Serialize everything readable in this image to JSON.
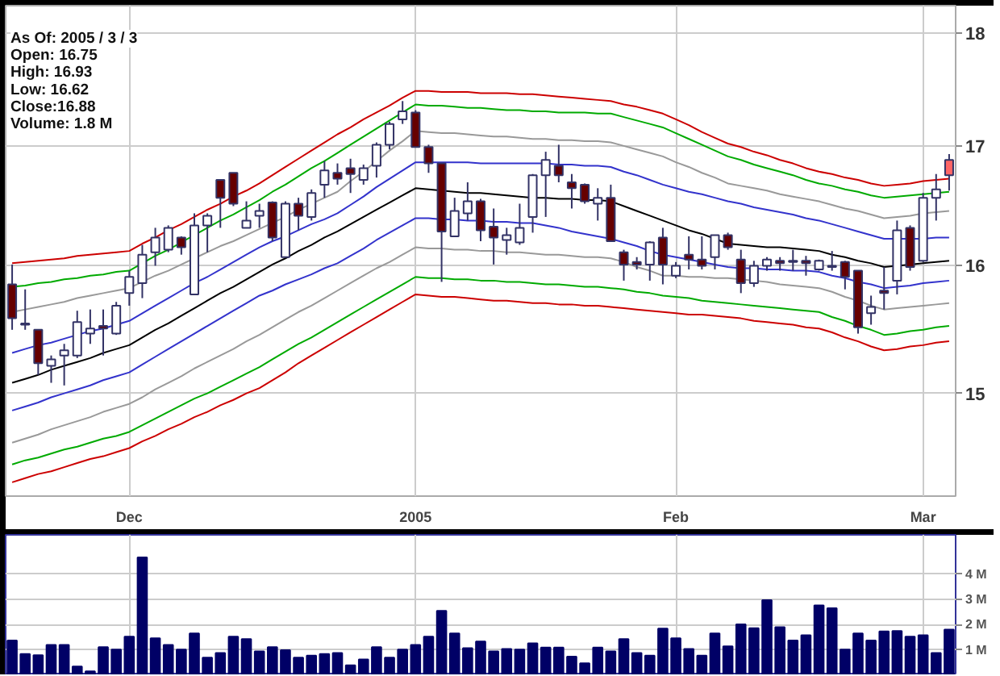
{
  "chart_data": [
    {
      "type": "candlestick",
      "categories": [
        null,
        null,
        null,
        null,
        null,
        null,
        null,
        null,
        null,
        "Dec",
        null,
        null,
        null,
        null,
        null,
        null,
        null,
        null,
        null,
        null,
        null,
        null,
        null,
        null,
        null,
        null,
        null,
        null,
        null,
        null,
        null,
        "2005",
        null,
        null,
        null,
        null,
        null,
        null,
        null,
        null,
        null,
        null,
        null,
        null,
        null,
        null,
        null,
        null,
        null,
        null,
        null,
        "Feb",
        null,
        null,
        null,
        null,
        null,
        null,
        null,
        null,
        null,
        null,
        null,
        null,
        null,
        null,
        null,
        null,
        null,
        null,
        "Mar",
        null,
        null
      ],
      "ohlc": [
        [
          15.85,
          16.01,
          15.49,
          15.58
        ],
        [
          15.53,
          15.81,
          15.49,
          15.54
        ],
        [
          15.49,
          15.49,
          15.14,
          15.23
        ],
        [
          15.21,
          15.29,
          15.08,
          15.26
        ],
        [
          15.29,
          15.38,
          15.06,
          15.33
        ],
        [
          15.29,
          15.64,
          15.27,
          15.55
        ],
        [
          15.46,
          15.65,
          15.38,
          15.5
        ],
        [
          15.52,
          15.65,
          15.29,
          15.5
        ],
        [
          15.46,
          15.71,
          15.45,
          15.68
        ],
        [
          15.78,
          15.96,
          15.68,
          15.91
        ],
        [
          15.86,
          16.17,
          15.74,
          16.09
        ],
        [
          16.11,
          16.31,
          16.0,
          16.23
        ],
        [
          16.13,
          16.33,
          16.11,
          16.31
        ],
        [
          16.23,
          16.24,
          16.09,
          16.15
        ],
        [
          15.77,
          16.43,
          15.77,
          16.33
        ],
        [
          16.33,
          16.43,
          16.11,
          16.41
        ],
        [
          16.71,
          16.71,
          16.31,
          16.56
        ],
        [
          16.77,
          16.77,
          16.49,
          16.51
        ],
        [
          16.31,
          16.53,
          16.31,
          16.37
        ],
        [
          16.41,
          16.51,
          16.31,
          16.45
        ],
        [
          16.52,
          16.53,
          16.2,
          16.23
        ],
        [
          16.07,
          16.53,
          16.07,
          16.51
        ],
        [
          16.51,
          16.56,
          16.29,
          16.41
        ],
        [
          16.4,
          16.63,
          16.37,
          16.6
        ],
        [
          16.67,
          16.87,
          16.56,
          16.79
        ],
        [
          16.77,
          16.85,
          16.67,
          16.72
        ],
        [
          16.81,
          16.89,
          16.6,
          16.76
        ],
        [
          16.71,
          16.84,
          16.67,
          16.81
        ],
        [
          16.83,
          17.03,
          16.73,
          17.01
        ],
        [
          17.01,
          17.21,
          16.97,
          17.19
        ],
        [
          17.23,
          17.39,
          17.19,
          17.3
        ],
        [
          17.29,
          17.31,
          16.99,
          16.99
        ],
        [
          16.99,
          17.01,
          16.77,
          16.85
        ],
        [
          16.85,
          16.85,
          15.87,
          16.28
        ],
        [
          16.24,
          16.56,
          16.24,
          16.45
        ],
        [
          16.43,
          16.69,
          16.37,
          16.53
        ],
        [
          16.53,
          16.55,
          16.2,
          16.29
        ],
        [
          16.32,
          16.47,
          16.01,
          16.23
        ],
        [
          16.21,
          16.31,
          16.09,
          16.25
        ],
        [
          16.19,
          16.51,
          16.17,
          16.31
        ],
        [
          16.4,
          16.76,
          16.27,
          16.75
        ],
        [
          16.75,
          16.95,
          16.4,
          16.88
        ],
        [
          16.83,
          17.01,
          16.69,
          16.75
        ],
        [
          16.69,
          16.76,
          16.47,
          16.64
        ],
        [
          16.67,
          16.68,
          16.51,
          16.53
        ],
        [
          16.51,
          16.64,
          16.37,
          16.56
        ],
        [
          16.56,
          16.67,
          16.2,
          16.2
        ],
        [
          16.11,
          16.13,
          15.88,
          16.01
        ],
        [
          16.03,
          16.07,
          15.97,
          16.01
        ],
        [
          16.01,
          16.2,
          15.88,
          16.19
        ],
        [
          16.23,
          16.31,
          15.85,
          16.01
        ],
        [
          15.92,
          16.03,
          15.9,
          16.0
        ],
        [
          16.09,
          16.24,
          15.97,
          16.05
        ],
        [
          16.05,
          16.24,
          15.97,
          16.0
        ],
        [
          16.07,
          16.25,
          15.97,
          16.25
        ],
        [
          16.25,
          16.27,
          16.13,
          16.15
        ],
        [
          16.05,
          16.13,
          15.78,
          15.86
        ],
        [
          15.86,
          16.04,
          15.83,
          16.0
        ],
        [
          16.0,
          16.07,
          15.96,
          16.05
        ],
        [
          16.04,
          16.07,
          15.96,
          16.02
        ],
        [
          16.03,
          16.13,
          15.96,
          16.04
        ],
        [
          16.04,
          16.08,
          15.92,
          16.02
        ],
        [
          15.97,
          16.05,
          15.96,
          16.04
        ],
        [
          15.99,
          16.12,
          15.96,
          16.0
        ],
        [
          16.03,
          16.04,
          15.81,
          15.91
        ],
        [
          15.96,
          15.96,
          15.46,
          15.51
        ],
        [
          15.62,
          15.76,
          15.53,
          15.67
        ],
        [
          15.8,
          15.99,
          15.65,
          15.78
        ],
        [
          15.88,
          16.37,
          15.77,
          16.29
        ],
        [
          16.31,
          16.33,
          15.96,
          15.99
        ],
        [
          16.04,
          16.6,
          16.03,
          16.56
        ],
        [
          16.56,
          16.76,
          16.37,
          16.63
        ],
        [
          16.75,
          16.93,
          16.62,
          16.88
        ]
      ],
      "colors": [
        "#660000",
        "#ffffff",
        "#660000",
        "#ffffff",
        "#ffffff",
        "#ffffff",
        "#ffffff",
        "#660000",
        "#ffffff",
        "#ffffff",
        "#ffffff",
        "#ffffff",
        "#ffffff",
        "#660000",
        "#ffffff",
        "#ffffff",
        "#660000",
        "#660000",
        "#ffffff",
        "#ffffff",
        "#660000",
        "#ffffff",
        "#660000",
        "#ffffff",
        "#ffffff",
        "#660000",
        "#660000",
        "#ffffff",
        "#ffffff",
        "#ffffff",
        "#ffffff",
        "#660000",
        "#660000",
        "#660000",
        "#ffffff",
        "#ffffff",
        "#660000",
        "#660000",
        "#ffffff",
        "#ffffff",
        "#ffffff",
        "#ffffff",
        "#660000",
        "#660000",
        "#660000",
        "#ffffff",
        "#660000",
        "#660000",
        "#660000",
        "#ffffff",
        "#660000",
        "#ffffff",
        "#660000",
        "#660000",
        "#ffffff",
        "#660000",
        "#660000",
        "#ffffff",
        "#ffffff",
        "#660000",
        "#ffffff",
        "#660000",
        "#ffffff",
        "#ffffff",
        "#660000",
        "#660000",
        "#ffffff",
        "#660000",
        "#ffffff",
        "#660000",
        "#ffffff",
        "#ffffff",
        "#ff6666"
      ],
      "color": "#333366",
      "series": [
        {
          "type": "line",
          "color": "#cc0000",
          "values": [
            16.02,
            16.03,
            16.04,
            16.05,
            16.06,
            16.08,
            16.09,
            16.1,
            16.11,
            16.12,
            16.18,
            16.23,
            16.29,
            16.34,
            16.4,
            16.46,
            16.51,
            16.57,
            16.62,
            16.68,
            16.75,
            16.82,
            16.89,
            16.96,
            17.03,
            17.1,
            17.16,
            17.23,
            17.29,
            17.35,
            17.42,
            17.48,
            17.48,
            17.47,
            17.47,
            17.47,
            17.46,
            17.46,
            17.46,
            17.45,
            17.45,
            17.44,
            17.43,
            17.42,
            17.41,
            17.4,
            17.39,
            17.36,
            17.34,
            17.31,
            17.28,
            17.23,
            17.18,
            17.12,
            17.07,
            17.02,
            16.99,
            16.95,
            16.92,
            16.88,
            16.85,
            16.81,
            16.78,
            16.76,
            16.73,
            16.71,
            16.68,
            16.66,
            16.67,
            16.68,
            16.7,
            16.71,
            16.72
          ]
        },
        {
          "type": "line",
          "color": "#00aa00",
          "values": [
            15.83,
            15.84,
            15.86,
            15.87,
            15.89,
            15.9,
            15.92,
            15.93,
            15.95,
            15.96,
            16.02,
            16.08,
            16.13,
            16.19,
            16.25,
            16.31,
            16.37,
            16.42,
            16.48,
            16.54,
            16.61,
            16.67,
            16.74,
            16.81,
            16.87,
            16.94,
            17.01,
            17.08,
            17.15,
            17.22,
            17.29,
            17.36,
            17.35,
            17.35,
            17.34,
            17.33,
            17.33,
            17.32,
            17.31,
            17.31,
            17.3,
            17.3,
            17.29,
            17.29,
            17.29,
            17.28,
            17.28,
            17.25,
            17.22,
            17.19,
            17.16,
            17.11,
            17.06,
            17.01,
            16.96,
            16.91,
            16.88,
            16.84,
            16.81,
            16.78,
            16.75,
            16.71,
            16.68,
            16.66,
            16.63,
            16.61,
            16.58,
            16.56,
            16.57,
            16.58,
            16.59,
            16.6,
            16.61
          ]
        },
        {
          "type": "line",
          "color": "#999999",
          "values": [
            15.63,
            15.65,
            15.67,
            15.69,
            15.71,
            15.74,
            15.76,
            15.78,
            15.8,
            15.82,
            15.87,
            15.92,
            15.96,
            16.01,
            16.06,
            16.11,
            16.16,
            16.2,
            16.25,
            16.3,
            16.35,
            16.4,
            16.46,
            16.51,
            16.56,
            16.61,
            16.7,
            16.78,
            16.87,
            16.96,
            17.04,
            17.13,
            17.12,
            17.11,
            17.11,
            17.1,
            17.09,
            17.08,
            17.08,
            17.07,
            17.06,
            17.06,
            17.05,
            17.05,
            17.04,
            17.04,
            17.03,
            17.0,
            16.97,
            16.94,
            16.91,
            16.86,
            16.82,
            16.77,
            16.73,
            16.68,
            16.66,
            16.64,
            16.62,
            16.59,
            16.57,
            16.55,
            16.53,
            16.5,
            16.47,
            16.45,
            16.42,
            16.39,
            16.4,
            16.41,
            16.43,
            16.44,
            16.45
          ]
        },
        {
          "type": "line",
          "color": "#3333cc",
          "values": [
            15.31,
            15.34,
            15.37,
            15.39,
            15.42,
            15.45,
            15.48,
            15.5,
            15.53,
            15.56,
            15.62,
            15.68,
            15.74,
            15.8,
            15.86,
            15.91,
            15.97,
            16.03,
            16.09,
            16.15,
            16.2,
            16.24,
            16.29,
            16.34,
            16.38,
            16.43,
            16.5,
            16.57,
            16.65,
            16.72,
            16.79,
            16.86,
            16.86,
            16.86,
            16.86,
            16.86,
            16.85,
            16.85,
            16.85,
            16.85,
            16.85,
            16.85,
            16.84,
            16.84,
            16.83,
            16.83,
            16.82,
            16.78,
            16.75,
            16.71,
            16.67,
            16.64,
            16.61,
            16.59,
            16.56,
            16.53,
            16.51,
            16.48,
            16.46,
            16.44,
            16.42,
            16.39,
            16.37,
            16.34,
            16.31,
            16.28,
            16.25,
            16.22,
            16.22,
            16.22,
            16.22,
            16.23,
            16.23
          ]
        },
        {
          "type": "line",
          "color": "#000000",
          "values": [
            15.08,
            15.11,
            15.14,
            15.18,
            15.21,
            15.24,
            15.27,
            15.31,
            15.34,
            15.37,
            15.43,
            15.49,
            15.54,
            15.6,
            15.66,
            15.72,
            15.78,
            15.83,
            15.89,
            15.95,
            16.01,
            16.06,
            16.12,
            16.17,
            16.23,
            16.28,
            16.34,
            16.4,
            16.46,
            16.52,
            16.58,
            16.64,
            16.63,
            16.62,
            16.61,
            16.6,
            16.6,
            16.59,
            16.58,
            16.57,
            16.56,
            16.56,
            16.55,
            16.55,
            16.54,
            16.54,
            16.53,
            16.49,
            16.45,
            16.41,
            16.37,
            16.33,
            16.29,
            16.26,
            16.22,
            16.18,
            16.17,
            16.16,
            16.15,
            16.15,
            16.14,
            16.13,
            16.12,
            16.09,
            16.07,
            16.04,
            16.02,
            15.99,
            16.0,
            16.01,
            16.02,
            16.03,
            16.04
          ]
        },
        {
          "type": "line",
          "color": "#3333cc",
          "values": [
            14.87,
            14.9,
            14.93,
            14.97,
            15.0,
            15.03,
            15.06,
            15.1,
            15.13,
            15.16,
            15.22,
            15.28,
            15.34,
            15.4,
            15.46,
            15.52,
            15.58,
            15.64,
            15.7,
            15.76,
            15.8,
            15.85,
            15.89,
            15.93,
            15.98,
            16.02,
            16.08,
            16.14,
            16.21,
            16.27,
            16.33,
            16.39,
            16.39,
            16.38,
            16.38,
            16.37,
            16.37,
            16.36,
            16.36,
            16.35,
            16.35,
            16.33,
            16.31,
            16.28,
            16.26,
            16.24,
            16.22,
            16.19,
            16.16,
            16.12,
            16.09,
            16.07,
            16.05,
            16.03,
            16.01,
            15.99,
            15.98,
            15.98,
            15.97,
            15.97,
            15.96,
            15.96,
            15.95,
            15.92,
            15.9,
            15.87,
            15.85,
            15.82,
            15.83,
            15.84,
            15.86,
            15.87,
            15.88
          ]
        },
        {
          "type": "line",
          "color": "#999999",
          "values": [
            14.63,
            14.66,
            14.69,
            14.73,
            14.76,
            14.79,
            14.82,
            14.86,
            14.89,
            14.92,
            14.97,
            15.03,
            15.08,
            15.13,
            15.19,
            15.24,
            15.29,
            15.34,
            15.4,
            15.45,
            15.51,
            15.57,
            15.63,
            15.68,
            15.74,
            15.8,
            15.86,
            15.92,
            15.98,
            16.03,
            16.09,
            16.15,
            16.14,
            16.14,
            16.13,
            16.13,
            16.12,
            16.12,
            16.11,
            16.11,
            16.1,
            16.09,
            16.09,
            16.08,
            16.07,
            16.07,
            16.06,
            16.03,
            15.99,
            15.96,
            15.92,
            15.92,
            15.91,
            15.91,
            15.9,
            15.9,
            15.89,
            15.88,
            15.87,
            15.85,
            15.84,
            15.83,
            15.82,
            15.79,
            15.75,
            15.72,
            15.68,
            15.65,
            15.66,
            15.67,
            15.68,
            15.69,
            15.7
          ]
        },
        {
          "type": "line",
          "color": "#00aa00",
          "values": [
            14.47,
            14.5,
            14.52,
            14.55,
            14.58,
            14.6,
            14.63,
            14.66,
            14.68,
            14.71,
            14.76,
            14.81,
            14.86,
            14.91,
            14.96,
            15.0,
            15.05,
            15.1,
            15.15,
            15.2,
            15.26,
            15.32,
            15.38,
            15.43,
            15.49,
            15.55,
            15.61,
            15.67,
            15.73,
            15.79,
            15.85,
            15.91,
            15.9,
            15.9,
            15.89,
            15.89,
            15.88,
            15.88,
            15.87,
            15.87,
            15.86,
            15.85,
            15.85,
            15.84,
            15.83,
            15.83,
            15.82,
            15.81,
            15.79,
            15.78,
            15.76,
            15.75,
            15.74,
            15.72,
            15.71,
            15.7,
            15.69,
            15.68,
            15.67,
            15.66,
            15.65,
            15.64,
            15.63,
            15.59,
            15.56,
            15.52,
            15.49,
            15.45,
            15.46,
            15.48,
            15.49,
            15.51,
            15.52
          ]
        },
        {
          "type": "line",
          "color": "#cc0000",
          "values": [
            14.34,
            14.37,
            14.4,
            14.42,
            14.45,
            14.48,
            14.51,
            14.53,
            14.56,
            14.59,
            14.64,
            14.68,
            14.73,
            14.77,
            14.82,
            14.86,
            14.91,
            14.95,
            15.0,
            15.04,
            15.1,
            15.16,
            15.23,
            15.29,
            15.35,
            15.41,
            15.47,
            15.53,
            15.59,
            15.65,
            15.71,
            15.77,
            15.76,
            15.75,
            15.75,
            15.74,
            15.73,
            15.72,
            15.72,
            15.71,
            15.7,
            15.7,
            15.69,
            15.69,
            15.68,
            15.68,
            15.67,
            15.66,
            15.65,
            15.64,
            15.63,
            15.62,
            15.61,
            15.61,
            15.6,
            15.59,
            15.58,
            15.56,
            15.55,
            15.54,
            15.53,
            15.51,
            15.5,
            15.47,
            15.43,
            15.4,
            15.36,
            15.33,
            15.34,
            15.36,
            15.37,
            15.39,
            15.4
          ]
        }
      ],
      "annotations": [
        "As Of: 2005 / 3 / 3",
        "Open: 16.75",
        "High: 16.93",
        "Low: 16.62",
        "Close:16.88",
        "Volume: 1.8 M"
      ],
      "log": "y",
      "ylim": [
        14.24,
        18.25
      ],
      "yticks": [
        15,
        16,
        17,
        18
      ],
      "grid": true
    },
    {
      "type": "bar",
      "categories": [
        null,
        null,
        null,
        null,
        null,
        null,
        null,
        null,
        null,
        null,
        null,
        null,
        null,
        null,
        null,
        null,
        null,
        null,
        null,
        null,
        null,
        null,
        null,
        null,
        null,
        null,
        null,
        null,
        null,
        null,
        null,
        null,
        null,
        null,
        null,
        null,
        null,
        null,
        null,
        null,
        null,
        null,
        null,
        null,
        null,
        null,
        null,
        null,
        null,
        null,
        null,
        null,
        null,
        null,
        null,
        null,
        null,
        null,
        null,
        null,
        null,
        null,
        null,
        null,
        null,
        null,
        null,
        null,
        null,
        null,
        null,
        null,
        null
      ],
      "values": [
        1.37,
        0.84,
        0.79,
        1.2,
        1.2,
        0.34,
        0.15,
        1.11,
        1.01,
        1.52,
        4.66,
        1.46,
        1.2,
        1.01,
        1.65,
        0.69,
        0.88,
        1.52,
        1.43,
        0.94,
        1.11,
        0.99,
        0.69,
        0.77,
        0.84,
        0.88,
        0.39,
        0.62,
        1.11,
        0.69,
        1.01,
        1.2,
        1.52,
        2.54,
        1.65,
        1.07,
        1.33,
        0.94,
        1.04,
        1.01,
        1.26,
        1.09,
        1.09,
        0.73,
        0.47,
        1.09,
        0.94,
        1.43,
        0.88,
        0.77,
        1.84,
        1.46,
        1.04,
        0.77,
        1.65,
        1.14,
        2.01,
        1.86,
        2.97,
        1.9,
        1.37,
        1.58,
        2.76,
        2.65,
        1.01,
        1.65,
        1.37,
        1.73,
        1.75,
        1.52,
        1.58,
        0.88,
        1.8
      ],
      "color": "#000066",
      "ylim": [
        0,
        5.55
      ],
      "yticks": [
        {
          "value": 1,
          "label": "1 M"
        },
        {
          "value": 2,
          "label": "2 M"
        },
        {
          "value": 3,
          "label": "3 M"
        },
        {
          "value": 4,
          "label": "4 M"
        }
      ],
      "grid": true,
      "tick_labels": "y"
    }
  ]
}
